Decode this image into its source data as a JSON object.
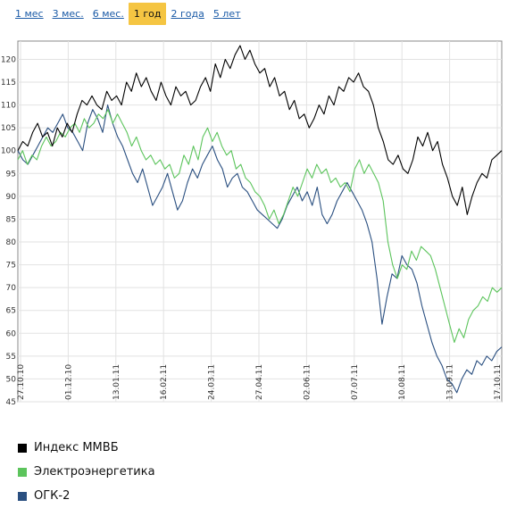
{
  "periods": [
    {
      "label": "1 мес",
      "active": false
    },
    {
      "label": "3 мес.",
      "active": false
    },
    {
      "label": "6 мес.",
      "active": false
    },
    {
      "label": "1 год",
      "active": true
    },
    {
      "label": "2 года",
      "active": false
    },
    {
      "label": "5 лет",
      "active": false
    }
  ],
  "chart_data": {
    "type": "line",
    "ylim": [
      45,
      124
    ],
    "yticks": [
      45,
      50,
      55,
      60,
      65,
      70,
      75,
      80,
      85,
      90,
      95,
      100,
      105,
      110,
      115,
      120
    ],
    "xticks": [
      "27.10.10",
      "01.12.10",
      "13.01.11",
      "16.02.11",
      "24.03.11",
      "27.04.11",
      "02.06.11",
      "07.07.11",
      "10.08.11",
      "13.09.11",
      "17.10.11"
    ],
    "grid": true,
    "legend_position": "bottom",
    "series": [
      {
        "name": "Индекс ММВБ",
        "color": "#000000",
        "values": [
          100,
          102,
          101,
          104,
          106,
          103,
          104,
          101,
          105,
          103,
          106,
          104,
          108,
          111,
          110,
          112,
          110,
          109,
          113,
          111,
          112,
          110,
          115,
          113,
          117,
          114,
          116,
          113,
          111,
          115,
          112,
          110,
          114,
          112,
          113,
          110,
          111,
          114,
          116,
          113,
          119,
          116,
          120,
          118,
          121,
          123,
          120,
          122,
          119,
          117,
          118,
          114,
          116,
          112,
          113,
          109,
          111,
          107,
          108,
          105,
          107,
          110,
          108,
          112,
          110,
          114,
          113,
          116,
          115,
          117,
          114,
          113,
          110,
          105,
          102,
          98,
          97,
          99,
          96,
          95,
          98,
          103,
          101,
          104,
          100,
          102,
          97,
          94,
          90,
          88,
          92,
          86,
          90,
          93,
          95,
          94,
          98,
          99,
          100
        ]
      },
      {
        "name": "Электроэнергетика",
        "color": "#5cc45c",
        "values": [
          98,
          100,
          97,
          99,
          98,
          101,
          103,
          101,
          102,
          104,
          103,
          105,
          106,
          104,
          107,
          105,
          106,
          108,
          107,
          109,
          106,
          108,
          106,
          104,
          101,
          103,
          100,
          98,
          99,
          97,
          98,
          96,
          97,
          94,
          95,
          99,
          97,
          101,
          98,
          103,
          105,
          102,
          104,
          101,
          99,
          100,
          96,
          97,
          94,
          93,
          91,
          90,
          88,
          85,
          87,
          84,
          86,
          89,
          92,
          90,
          93,
          96,
          94,
          97,
          95,
          96,
          93,
          94,
          92,
          93,
          91,
          96,
          98,
          95,
          97,
          95,
          93,
          89,
          80,
          75,
          72,
          75,
          74,
          78,
          76,
          79,
          78,
          77,
          74,
          70,
          66,
          62,
          58,
          61,
          59,
          63,
          65,
          66,
          68,
          67,
          70,
          69,
          70
        ]
      },
      {
        "name": "ОГК-2",
        "color": "#2a4f80",
        "values": [
          100,
          98,
          97,
          99,
          101,
          103,
          105,
          104,
          106,
          108,
          105,
          104,
          102,
          100,
          106,
          109,
          107,
          104,
          110,
          106,
          103,
          101,
          98,
          95,
          93,
          96,
          92,
          88,
          90,
          92,
          95,
          91,
          87,
          89,
          93,
          96,
          94,
          97,
          99,
          101,
          98,
          96,
          92,
          94,
          95,
          92,
          91,
          89,
          87,
          86,
          85,
          84,
          83,
          85,
          88,
          90,
          92,
          89,
          91,
          88,
          92,
          86,
          84,
          86,
          89,
          91,
          93,
          91,
          89,
          87,
          84,
          80,
          72,
          62,
          68,
          73,
          72,
          77,
          75,
          74,
          71,
          66,
          62,
          58,
          55,
          53,
          50,
          49,
          47,
          50,
          52,
          51,
          54,
          53,
          55,
          54,
          56,
          57
        ]
      }
    ]
  }
}
